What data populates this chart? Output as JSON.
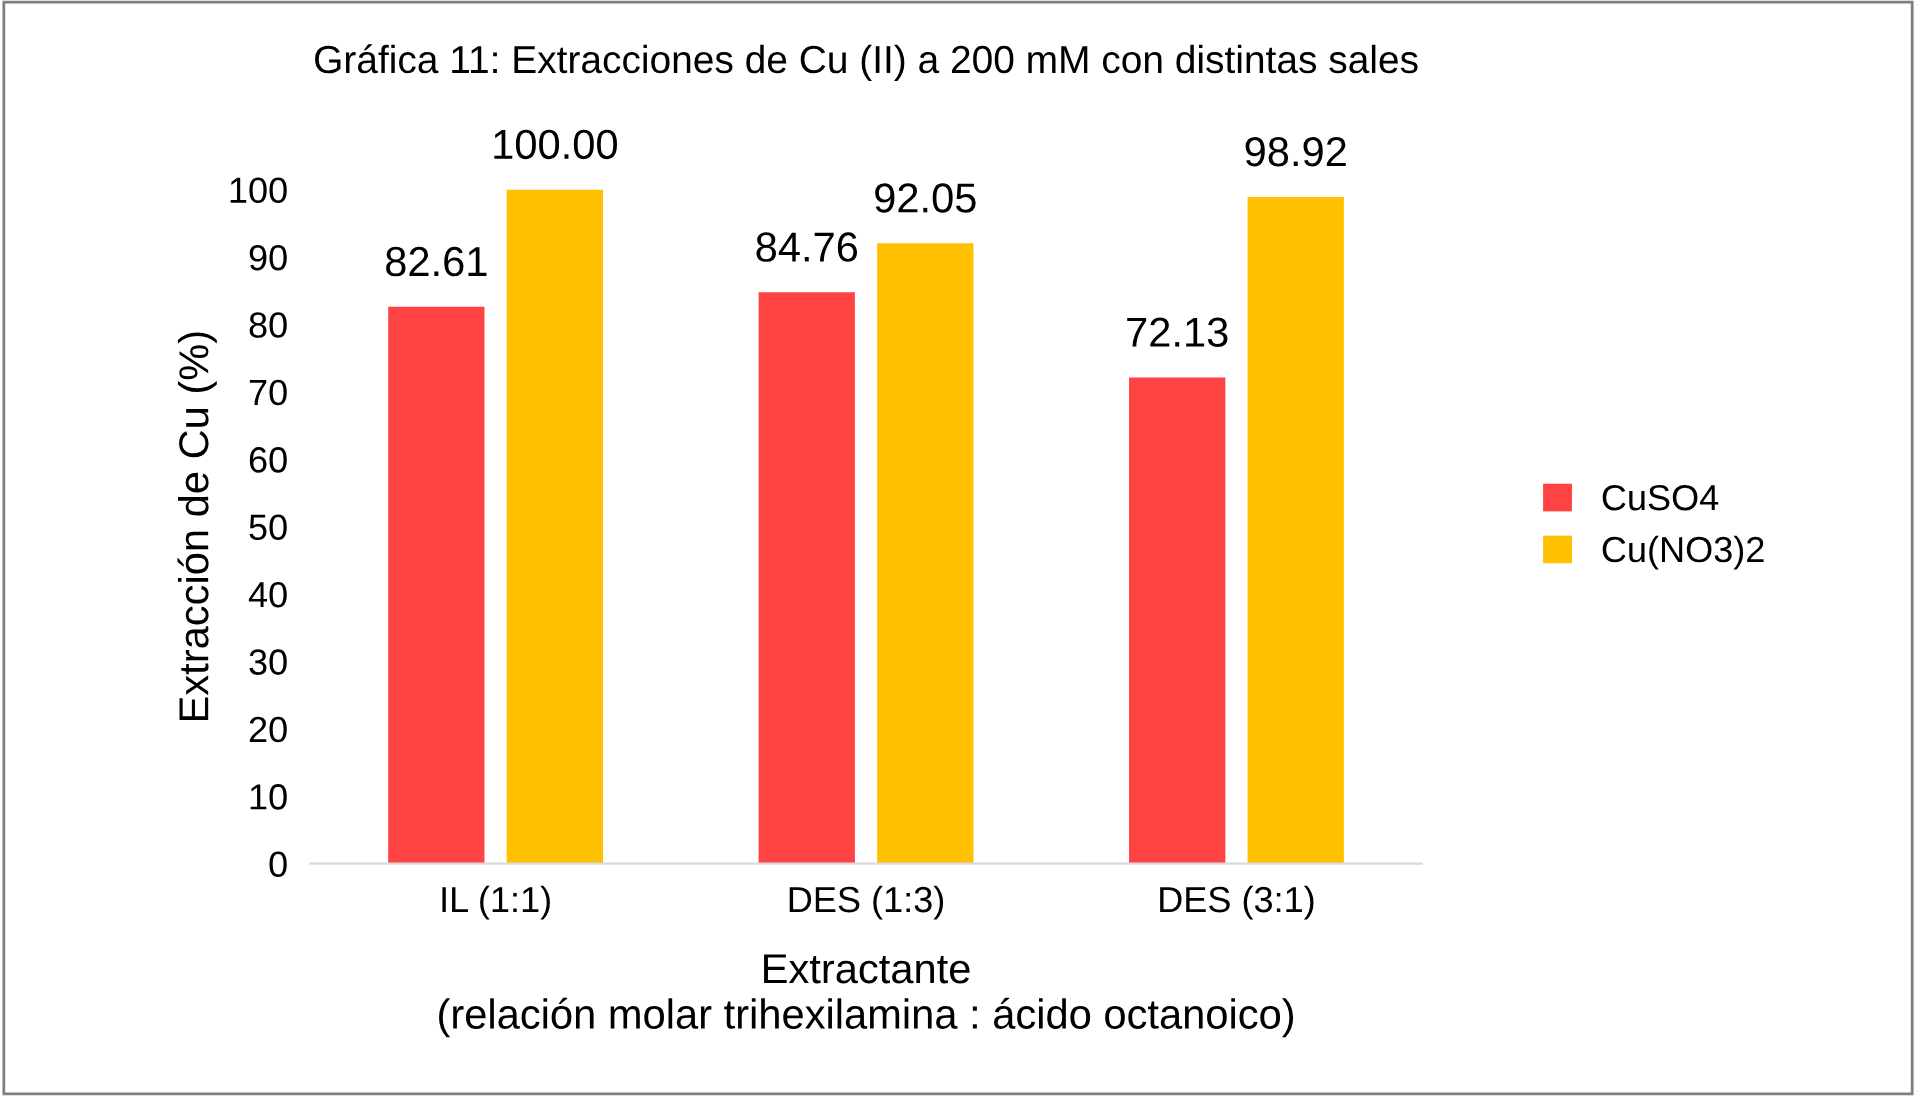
{
  "chart_data": {
    "type": "bar",
    "title": "Gráfica 11: Extracciones de Cu (II) a 200 mM con distintas sales",
    "xlabel": "Extractante\n(relación molar trihexilamina : ácido octanoico)",
    "ylabel": "Extracción de Cu (%)",
    "categories": [
      "IL (1:1)",
      "DES (1:3)",
      "DES (3:1)"
    ],
    "series": [
      {
        "name": "CuSO4",
        "color": "#ff4343",
        "values": [
          82.61,
          84.76,
          72.13
        ]
      },
      {
        "name": "Cu(NO3)2",
        "color": "#ffc000",
        "values": [
          100.0,
          92.05,
          98.92
        ]
      }
    ],
    "value_labels": [
      [
        "82.61",
        "84.76",
        "72.13"
      ],
      [
        "100.00",
        "92.05",
        "98.92"
      ]
    ],
    "ylim": [
      0,
      100
    ],
    "yticks": [
      0,
      10,
      20,
      30,
      40,
      50,
      60,
      70,
      80,
      90,
      100
    ],
    "grid": false,
    "legend": "right"
  }
}
